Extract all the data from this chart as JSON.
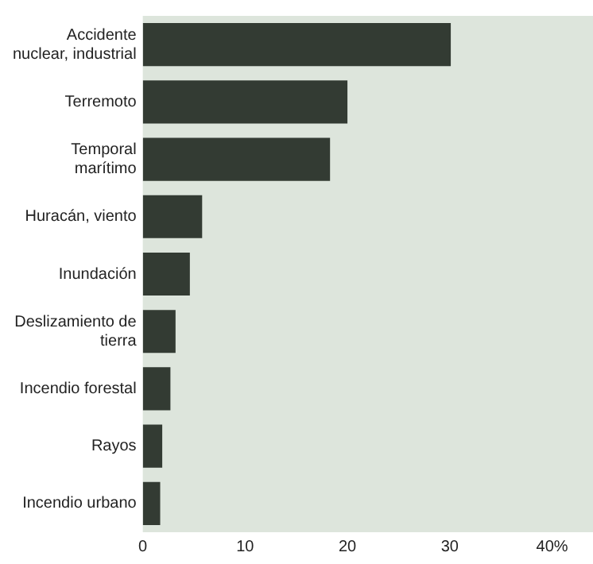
{
  "chart_data": {
    "type": "bar",
    "orientation": "horizontal",
    "categories": [
      "Accidente\nnuclear, industrial",
      "Terremoto",
      "Temporal\nmarítimo",
      "Huracán, viento",
      "Inundación",
      "Deslizamiento de\ntierra",
      "Incendio forestal",
      "Rayos",
      "Incendio urbano"
    ],
    "values": [
      30.1,
      20,
      18.3,
      5.8,
      4.6,
      3.2,
      2.7,
      1.9,
      1.7
    ],
    "color": "#333b33",
    "xlim": [
      0,
      44
    ],
    "xticks": [
      0,
      10,
      20,
      30,
      {
        "value": 40,
        "label": "40%"
      }
    ],
    "grid": false,
    "legend": false
  }
}
